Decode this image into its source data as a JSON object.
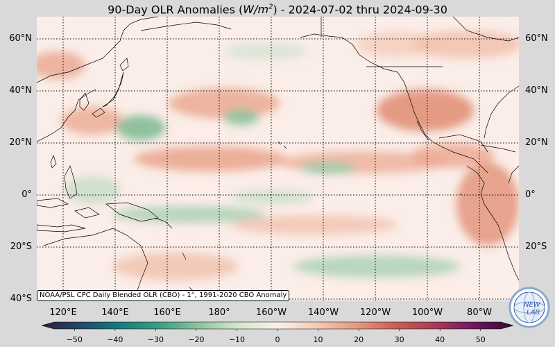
{
  "title": {
    "prefix": "90-Day OLR Anomalies (",
    "unit_base": "W/m",
    "unit_exp": "2",
    "suffix": ") - 2024-07-02 thru 2024-09-30"
  },
  "map": {
    "lat_labels": [
      "60°N",
      "40°N",
      "20°N",
      "0°",
      "20°S",
      "40°S"
    ],
    "lon_labels": [
      "120°E",
      "140°E",
      "160°E",
      "180°",
      "160°W",
      "140°W",
      "120°W",
      "100°W",
      "80°W"
    ],
    "lat_range": [
      -40,
      68
    ],
    "lon_range": [
      107,
      292
    ],
    "caption": "NOAA/PSL CPC Daily Blended OLR (CBO) - 1°, 1991-2020 CBO Anomaly"
  },
  "colorbar": {
    "ticks": [
      "−50",
      "−40",
      "−30",
      "−20",
      "−10",
      "0",
      "10",
      "20",
      "30",
      "40",
      "50"
    ],
    "range": [
      -55,
      55
    ],
    "colors": [
      "#2c1e3a",
      "#23476a",
      "#1b7a7b",
      "#3f9c83",
      "#8fc39e",
      "#d5e6cf",
      "#fbf1ec",
      "#f3cbb6",
      "#e39b82",
      "#c85f55",
      "#a8395a",
      "#6b1a5e",
      "#2e0a2a"
    ]
  },
  "logo": {
    "text_top": "NEW",
    "text_bottom": "LAB",
    "accent": "#2f5eaa"
  },
  "anomaly_colors": {
    "positive": "#e3937a",
    "positive_light": "#f2c3ad",
    "negative": "#74b38a",
    "negative_light": "#bfdcc4",
    "background": "#fbede8"
  }
}
